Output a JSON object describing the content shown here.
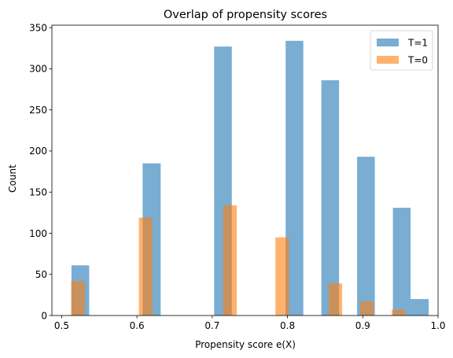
{
  "chart_data": {
    "type": "bar",
    "title": "Overlap of propensity scores",
    "xlabel": "Propensity score e(X)",
    "ylabel": "Count",
    "xlim": [
      0.487,
      1.0
    ],
    "ylim": [
      0,
      353
    ],
    "xticks": [
      0.5,
      0.6,
      0.7,
      0.8,
      0.9,
      1.0
    ],
    "xtick_labels": [
      "0.5",
      "0.6",
      "0.7",
      "0.8",
      "0.9",
      "1.0"
    ],
    "yticks": [
      0,
      50,
      100,
      150,
      200,
      250,
      300,
      350
    ],
    "ytick_labels": [
      "0",
      "50",
      "100",
      "150",
      "200",
      "250",
      "300",
      "350"
    ],
    "grid": false,
    "legend_position": "top-right",
    "series": [
      {
        "name": "T=1",
        "color": "#1f77b4",
        "opacity": 0.6,
        "bins": [
          {
            "x0": 0.513,
            "x1": 0.5365,
            "value": 61
          },
          {
            "x0": 0.6075,
            "x1": 0.6315,
            "value": 185
          },
          {
            "x0": 0.7025,
            "x1": 0.726,
            "value": 327
          },
          {
            "x0": 0.7975,
            "x1": 0.821,
            "value": 334
          },
          {
            "x0": 0.845,
            "x1": 0.8685,
            "value": 286
          },
          {
            "x0": 0.8925,
            "x1": 0.916,
            "value": 193
          },
          {
            "x0": 0.94,
            "x1": 0.9635,
            "value": 131
          },
          {
            "x0": 0.9635,
            "x1": 0.9875,
            "value": 20
          }
        ]
      },
      {
        "name": "T=0",
        "color": "#ff7f0e",
        "opacity": 0.6,
        "bins": [
          {
            "x0": 0.5125,
            "x1": 0.5305,
            "value": 42
          },
          {
            "x0": 0.6025,
            "x1": 0.6205,
            "value": 119
          },
          {
            "x0": 0.7145,
            "x1": 0.7325,
            "value": 134
          },
          {
            "x0": 0.784,
            "x1": 0.802,
            "value": 95
          },
          {
            "x0": 0.8545,
            "x1": 0.8725,
            "value": 39
          },
          {
            "x0": 0.8965,
            "x1": 0.9145,
            "value": 17
          },
          {
            "x0": 0.9385,
            "x1": 0.9565,
            "value": 7
          }
        ]
      }
    ]
  }
}
